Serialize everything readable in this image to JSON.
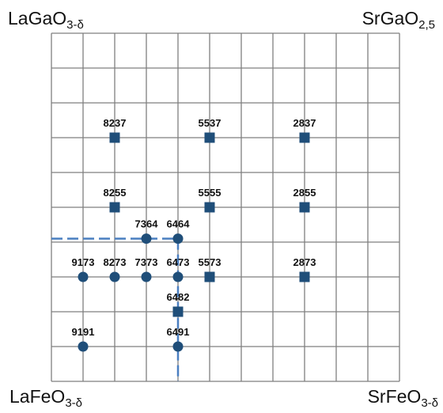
{
  "corners": {
    "top_left": {
      "base": "LaGaO",
      "sub": "3-δ"
    },
    "top_right": {
      "base": "SrGaO",
      "sub": "2,5"
    },
    "bottom_left": {
      "base": "LaFeO",
      "sub": "3-δ"
    },
    "bottom_right": {
      "base": "SrFeO",
      "sub": "3-δ"
    }
  },
  "grid": {
    "cols": 11,
    "rows": 10,
    "line_color": "#7f7f7f"
  },
  "colors": {
    "circle": "#1f4e79",
    "square": "#1f4e79",
    "dashed_line": "#4a7fc1"
  },
  "points": [
    {
      "label": "8237",
      "shape": "square",
      "gx": 2,
      "gy": 3
    },
    {
      "label": "5537",
      "shape": "square",
      "gx": 5,
      "gy": 3
    },
    {
      "label": "2837",
      "shape": "square",
      "gx": 8,
      "gy": 3
    },
    {
      "label": "8255",
      "shape": "square",
      "gx": 2,
      "gy": 5
    },
    {
      "label": "5555",
      "shape": "square",
      "gx": 5,
      "gy": 5
    },
    {
      "label": "2855",
      "shape": "square",
      "gx": 8,
      "gy": 5
    },
    {
      "label": "7364",
      "shape": "circle",
      "gx": 3,
      "gy": 5.9
    },
    {
      "label": "6464",
      "shape": "circle",
      "gx": 4,
      "gy": 5.9
    },
    {
      "label": "9173",
      "shape": "circle",
      "gx": 1,
      "gy": 7
    },
    {
      "label": "8273",
      "shape": "circle",
      "gx": 2,
      "gy": 7
    },
    {
      "label": "7373",
      "shape": "circle",
      "gx": 3,
      "gy": 7
    },
    {
      "label": "6473",
      "shape": "circle",
      "gx": 4,
      "gy": 7
    },
    {
      "label": "5573",
      "shape": "square",
      "gx": 5,
      "gy": 7
    },
    {
      "label": "2873",
      "shape": "square",
      "gx": 8,
      "gy": 7
    },
    {
      "label": "6482",
      "shape": "square",
      "gx": 4,
      "gy": 8
    },
    {
      "label": "9191",
      "shape": "circle",
      "gx": 1,
      "gy": 9
    },
    {
      "label": "6491",
      "shape": "circle",
      "gx": 4,
      "gy": 9
    }
  ]
}
